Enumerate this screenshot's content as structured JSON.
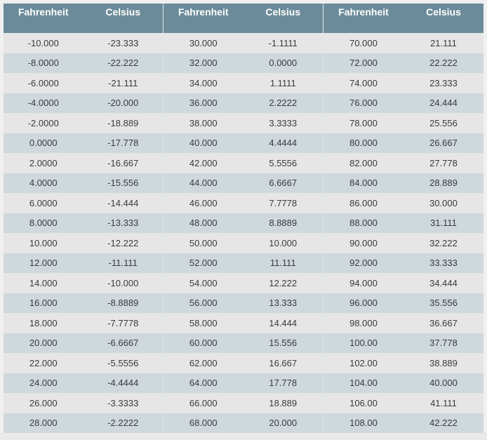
{
  "headers": {
    "fahrenheit": "Fahrenheit",
    "celsius": "Celsius"
  },
  "panels": [
    {
      "rows": [
        {
          "f": "-10.000",
          "c": "-23.333"
        },
        {
          "f": "-8.0000",
          "c": "-22.222"
        },
        {
          "f": "-6.0000",
          "c": "-21.111"
        },
        {
          "f": "-4.0000",
          "c": "-20.000"
        },
        {
          "f": "-2.0000",
          "c": "-18.889"
        },
        {
          "f": "0.0000",
          "c": "-17.778"
        },
        {
          "f": "2.0000",
          "c": "-16.667"
        },
        {
          "f": "4.0000",
          "c": "-15.556"
        },
        {
          "f": "6.0000",
          "c": "-14.444"
        },
        {
          "f": "8.0000",
          "c": "-13.333"
        },
        {
          "f": "10.000",
          "c": "-12.222"
        },
        {
          "f": "12.000",
          "c": "-11.111"
        },
        {
          "f": "14.000",
          "c": "-10.000"
        },
        {
          "f": "16.000",
          "c": "-8.8889"
        },
        {
          "f": "18.000",
          "c": "-7.7778"
        },
        {
          "f": "20.000",
          "c": "-6.6667"
        },
        {
          "f": "22.000",
          "c": "-5.5556"
        },
        {
          "f": "24.000",
          "c": "-4.4444"
        },
        {
          "f": "26.000",
          "c": "-3.3333"
        },
        {
          "f": "28.000",
          "c": "-2.2222"
        }
      ]
    },
    {
      "rows": [
        {
          "f": "30.000",
          "c": "-1.1111"
        },
        {
          "f": "32.000",
          "c": "0.0000"
        },
        {
          "f": "34.000",
          "c": "1.1111"
        },
        {
          "f": "36.000",
          "c": "2.2222"
        },
        {
          "f": "38.000",
          "c": "3.3333"
        },
        {
          "f": "40.000",
          "c": "4.4444"
        },
        {
          "f": "42.000",
          "c": "5.5556"
        },
        {
          "f": "44.000",
          "c": "6.6667"
        },
        {
          "f": "46.000",
          "c": "7.7778"
        },
        {
          "f": "48.000",
          "c": "8.8889"
        },
        {
          "f": "50.000",
          "c": "10.000"
        },
        {
          "f": "52.000",
          "c": "11.111"
        },
        {
          "f": "54.000",
          "c": "12.222"
        },
        {
          "f": "56.000",
          "c": "13.333"
        },
        {
          "f": "58.000",
          "c": "14.444"
        },
        {
          "f": "60.000",
          "c": "15.556"
        },
        {
          "f": "62.000",
          "c": "16.667"
        },
        {
          "f": "64.000",
          "c": "17.778"
        },
        {
          "f": "66.000",
          "c": "18.889"
        },
        {
          "f": "68.000",
          "c": "20.000"
        }
      ]
    },
    {
      "rows": [
        {
          "f": "70.000",
          "c": "21.111"
        },
        {
          "f": "72.000",
          "c": "22.222"
        },
        {
          "f": "74.000",
          "c": "23.333"
        },
        {
          "f": "76.000",
          "c": "24.444"
        },
        {
          "f": "78.000",
          "c": "25.556"
        },
        {
          "f": "80.000",
          "c": "26.667"
        },
        {
          "f": "82.000",
          "c": "27.778"
        },
        {
          "f": "84.000",
          "c": "28.889"
        },
        {
          "f": "86.000",
          "c": "30.000"
        },
        {
          "f": "88.000",
          "c": "31.111"
        },
        {
          "f": "90.000",
          "c": "32.222"
        },
        {
          "f": "92.000",
          "c": "33.333"
        },
        {
          "f": "94.000",
          "c": "34.444"
        },
        {
          "f": "96.000",
          "c": "35.556"
        },
        {
          "f": "98.000",
          "c": "36.667"
        },
        {
          "f": "100.00",
          "c": "37.778"
        },
        {
          "f": "102.00",
          "c": "38.889"
        },
        {
          "f": "104.00",
          "c": "40.000"
        },
        {
          "f": "106.00",
          "c": "41.111"
        },
        {
          "f": "108.00",
          "c": "42.222"
        }
      ]
    }
  ]
}
